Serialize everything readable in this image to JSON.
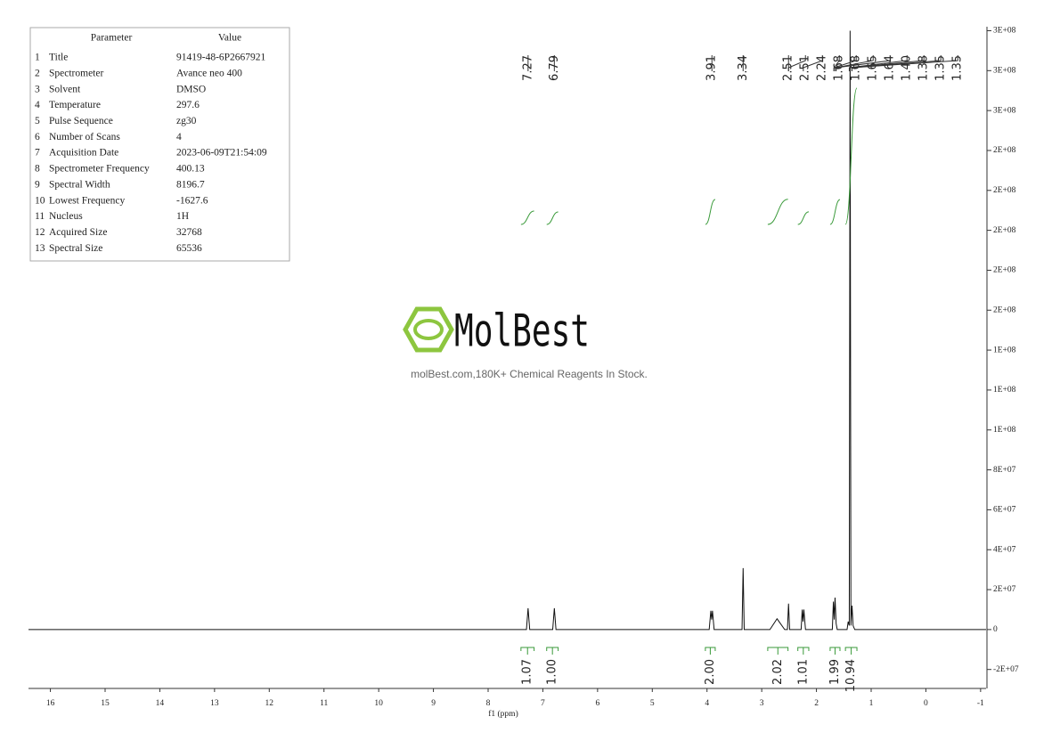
{
  "table": {
    "header": [
      "Parameter",
      "Value"
    ],
    "rows": [
      [
        "1",
        "Title",
        "91419-48-6P2667921"
      ],
      [
        "2",
        "Spectrometer",
        "Avance neo 400"
      ],
      [
        "3",
        "Solvent",
        "DMSO"
      ],
      [
        "4",
        "Temperature",
        "297.6"
      ],
      [
        "5",
        "Pulse Sequence",
        "zg30"
      ],
      [
        "6",
        "Number of Scans",
        "4"
      ],
      [
        "7",
        "Acquisition Date",
        "2023-06-09T21:54:09"
      ],
      [
        "8",
        "Spectrometer Frequency",
        "400.13"
      ],
      [
        "9",
        "Spectral Width",
        "8196.7"
      ],
      [
        "10",
        "Lowest Frequency",
        "-1627.6"
      ],
      [
        "11",
        "Nucleus",
        "1H"
      ],
      [
        "12",
        "Acquired Size",
        "32768"
      ],
      [
        "13",
        "Spectral Size",
        "65536"
      ]
    ]
  },
  "watermark": {
    "brand": "MolBest",
    "tagline": "molBest.com,180K+ Chemical Reagents In Stock."
  },
  "chart_data": {
    "type": "line",
    "xlabel": "f1 (ppm)",
    "color": "#111111",
    "x": [
      16.4,
      7.3,
      7.27,
      7.24,
      6.82,
      6.79,
      6.76,
      3.96,
      3.93,
      3.915,
      3.9,
      3.87,
      3.36,
      3.34,
      3.32,
      2.85,
      2.72,
      2.58,
      2.53,
      2.51,
      2.49,
      2.28,
      2.26,
      2.245,
      2.23,
      2.2,
      1.71,
      1.69,
      1.675,
      1.66,
      1.64,
      1.62,
      1.44,
      1.42,
      1.4,
      1.385,
      1.37,
      1.35,
      1.33,
      1.3,
      -1.1
    ],
    "values": [
      0,
      0,
      10700000,
      0,
      0,
      10700000,
      0,
      0,
      9400000,
      5000000,
      9400000,
      0,
      0,
      30800000,
      0,
      0,
      5400000,
      0,
      0,
      13000000,
      0,
      0,
      10000000,
      4000000,
      10000000,
      0,
      0,
      14000000,
      5000000,
      16000000,
      3000000,
      0,
      0,
      4000000,
      2000000,
      300000000,
      2000000,
      12000000,
      2000000,
      0,
      0
    ],
    "xlim": [
      16.4,
      -1.1
    ],
    "xticks": [
      16,
      15,
      14,
      13,
      12,
      11,
      10,
      9,
      8,
      7,
      6,
      5,
      4,
      3,
      2,
      1,
      0,
      -1
    ],
    "ylim": [
      -29500000,
      302000000
    ],
    "yticks": [
      {
        "value": -20000000,
        "label": "-2E+07"
      },
      0,
      {
        "value": 20000000,
        "label": "2E+07"
      },
      {
        "value": 40000000,
        "label": "4E+07"
      },
      {
        "value": 60000000,
        "label": "6E+07"
      },
      {
        "value": 80000000,
        "label": "8E+07"
      },
      {
        "value": 100000000,
        "label": "1E+08"
      },
      {
        "value": 120000000,
        "label": "1E+08"
      },
      {
        "value": 140000000,
        "label": "1E+08"
      },
      {
        "value": 160000000,
        "label": "2E+08"
      },
      {
        "value": 180000000,
        "label": "2E+08"
      },
      {
        "value": 200000000,
        "label": "2E+08"
      },
      {
        "value": 220000000,
        "label": "2E+08"
      },
      {
        "value": 240000000,
        "label": "2E+08"
      },
      {
        "value": 260000000,
        "label": "3E+08"
      },
      {
        "value": 280000000,
        "label": "3E+08"
      },
      {
        "value": 300000000,
        "label": "3E+08"
      }
    ],
    "peaks": {
      "values": [
        7.27,
        6.79,
        3.91,
        3.34,
        2.51,
        2.51,
        2.24,
        1.68,
        1.68,
        1.65,
        1.64,
        1.4,
        1.38,
        1.35,
        1.35
      ],
      "value_labels": [
        "7.27",
        "6.79",
        "3.91",
        "3.34",
        "2.51",
        "2.51",
        "2.24",
        "1.68",
        "1.68",
        "1.65",
        "1.64",
        "1.40",
        "1.38",
        "1.35",
        "1.35"
      ]
    },
    "integrals": {
      "ranges": [
        [
          7.4,
          7.16
        ],
        [
          6.93,
          6.72
        ],
        [
          4.03,
          3.85
        ],
        [
          2.89,
          2.52
        ],
        [
          2.34,
          2.14
        ],
        [
          1.75,
          1.57
        ],
        [
          1.47,
          1.26
        ]
      ],
      "values": [
        1.07,
        1.0,
        2.0,
        2.02,
        1.01,
        1.99,
        10.94
      ],
      "value_labels": [
        "1.07",
        "1.00",
        "2.00",
        "2.02",
        "1.01",
        "1.99",
        "10.94"
      ],
      "color": "#3a9a3a"
    }
  }
}
